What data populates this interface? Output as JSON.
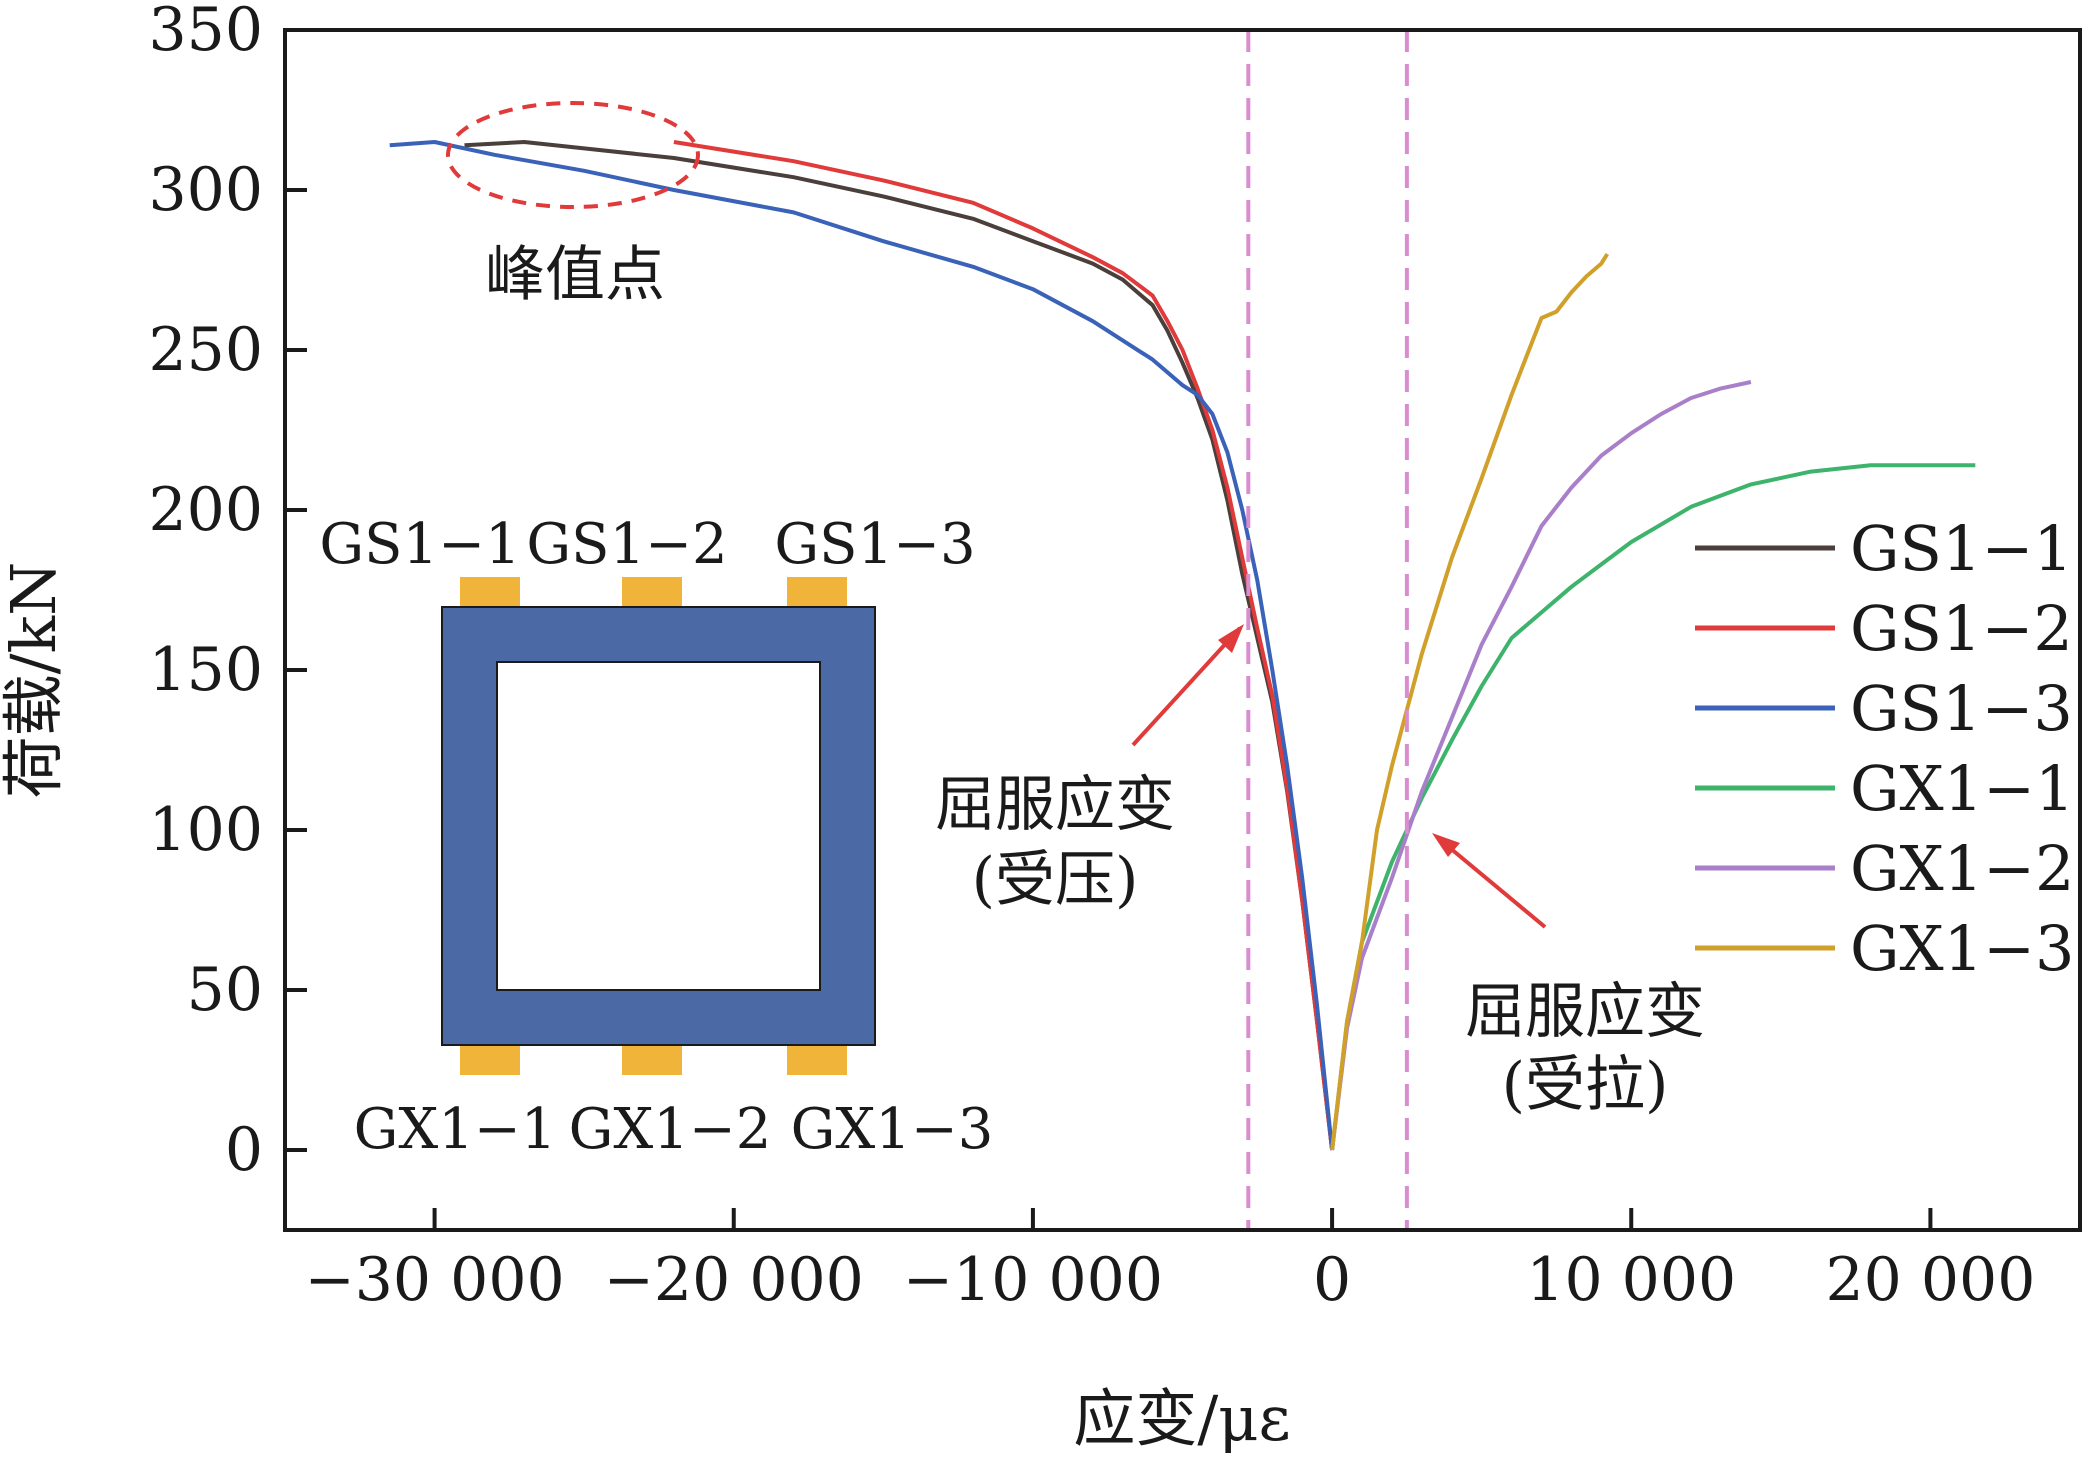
{
  "chart_data": {
    "type": "line",
    "title": "",
    "xlabel": "应变/με",
    "ylabel": "荷载/kN",
    "xlim": [
      -35000,
      25000
    ],
    "ylim": [
      -25,
      350
    ],
    "xticks": [
      -30000,
      -20000,
      -10000,
      0,
      10000,
      20000
    ],
    "xtick_labels": [
      "−30 000",
      "−20 000",
      "−10 000",
      "0",
      "10 000",
      "20 000"
    ],
    "yticks": [
      0,
      50,
      100,
      150,
      200,
      250,
      300,
      350
    ],
    "ytick_labels": [
      "0",
      "50",
      "100",
      "150",
      "200",
      "250",
      "300",
      "350"
    ],
    "grid": false,
    "legend_position": "right",
    "series": [
      {
        "name": "GS1−1",
        "color": "#4a3f3a",
        "points": [
          [
            0,
            0
          ],
          [
            -500,
            40
          ],
          [
            -1000,
            78
          ],
          [
            -1500,
            112
          ],
          [
            -2000,
            140
          ],
          [
            -2500,
            160
          ],
          [
            -3000,
            180
          ],
          [
            -3500,
            203
          ],
          [
            -4000,
            222
          ],
          [
            -4500,
            235
          ],
          [
            -5000,
            246
          ],
          [
            -5500,
            256
          ],
          [
            -6000,
            264
          ],
          [
            -7000,
            272
          ],
          [
            -8000,
            277
          ],
          [
            -10000,
            284
          ],
          [
            -12000,
            291
          ],
          [
            -15000,
            298
          ],
          [
            -18000,
            304
          ],
          [
            -22000,
            310
          ],
          [
            -25000,
            313
          ],
          [
            -27000,
            315
          ],
          [
            -29000,
            314
          ]
        ]
      },
      {
        "name": "GS1−2",
        "color": "#e03a3a",
        "points": [
          [
            0,
            0
          ],
          [
            -500,
            40
          ],
          [
            -1000,
            78
          ],
          [
            -1500,
            113
          ],
          [
            -2000,
            142
          ],
          [
            -2500,
            163
          ],
          [
            -3000,
            185
          ],
          [
            -3500,
            207
          ],
          [
            -4000,
            225
          ],
          [
            -4500,
            238
          ],
          [
            -5000,
            250
          ],
          [
            -5500,
            259
          ],
          [
            -6000,
            267
          ],
          [
            -7000,
            274
          ],
          [
            -8000,
            279
          ],
          [
            -10000,
            288
          ],
          [
            -12000,
            296
          ],
          [
            -15000,
            303
          ],
          [
            -18000,
            309
          ],
          [
            -22000,
            315
          ]
        ]
      },
      {
        "name": "GS1−3",
        "color": "#3a62b8",
        "points": [
          [
            0,
            0
          ],
          [
            -500,
            45
          ],
          [
            -1000,
            85
          ],
          [
            -1500,
            120
          ],
          [
            -2000,
            150
          ],
          [
            -2500,
            178
          ],
          [
            -3000,
            200
          ],
          [
            -3500,
            218
          ],
          [
            -4000,
            230
          ],
          [
            -4500,
            236
          ],
          [
            -5000,
            239
          ],
          [
            -6000,
            247
          ],
          [
            -7000,
            253
          ],
          [
            -8000,
            259
          ],
          [
            -10000,
            269
          ],
          [
            -12000,
            276
          ],
          [
            -15000,
            284
          ],
          [
            -18000,
            293
          ],
          [
            -22000,
            300
          ],
          [
            -25000,
            306
          ],
          [
            -28000,
            311
          ],
          [
            -30000,
            315
          ],
          [
            -31500,
            314
          ]
        ]
      },
      {
        "name": "GX1−1",
        "color": "#3db36b",
        "points": [
          [
            0,
            0
          ],
          [
            500,
            40
          ],
          [
            1000,
            65
          ],
          [
            2000,
            90
          ],
          [
            3000,
            110
          ],
          [
            4000,
            128
          ],
          [
            5000,
            145
          ],
          [
            6000,
            160
          ],
          [
            7000,
            168
          ],
          [
            8000,
            176
          ],
          [
            9000,
            183
          ],
          [
            10000,
            190
          ],
          [
            12000,
            201
          ],
          [
            14000,
            208
          ],
          [
            16000,
            212
          ],
          [
            18000,
            214
          ],
          [
            20000,
            214
          ],
          [
            21500,
            214
          ]
        ]
      },
      {
        "name": "GX1−2",
        "color": "#a97fc9",
        "points": [
          [
            0,
            0
          ],
          [
            500,
            38
          ],
          [
            1000,
            60
          ],
          [
            2000,
            85
          ],
          [
            3000,
            112
          ],
          [
            4000,
            135
          ],
          [
            5000,
            158
          ],
          [
            6000,
            176
          ],
          [
            7000,
            195
          ],
          [
            8000,
            207
          ],
          [
            9000,
            217
          ],
          [
            10000,
            224
          ],
          [
            11000,
            230
          ],
          [
            12000,
            235
          ],
          [
            13000,
            238
          ],
          [
            14000,
            240
          ]
        ]
      },
      {
        "name": "GX1−3",
        "color": "#d1a02a",
        "points": [
          [
            0,
            0
          ],
          [
            500,
            40
          ],
          [
            1000,
            65
          ],
          [
            1500,
            100
          ],
          [
            2000,
            120
          ],
          [
            3000,
            155
          ],
          [
            4000,
            185
          ],
          [
            5000,
            210
          ],
          [
            6000,
            236
          ],
          [
            6500,
            248
          ],
          [
            7000,
            260
          ],
          [
            7500,
            262
          ],
          [
            8000,
            268
          ],
          [
            8500,
            273
          ],
          [
            9000,
            277
          ],
          [
            9200,
            280
          ]
        ]
      }
    ],
    "annotations": {
      "peak": "峰值点",
      "yield_compression_1": "屈服应变",
      "yield_compression_2": "(受压)",
      "yield_tension_1": "屈服应变",
      "yield_tension_2": "(受拉)"
    },
    "reference_lines_x": [
      -2800,
      2500
    ],
    "inset": {
      "top_labels": [
        "GS1−1",
        "GS1−2",
        "GS1−3"
      ],
      "bottom_labels": [
        "GX1−1",
        "GX1−2",
        "GX1−3"
      ],
      "tube_color": "#4a69a5",
      "gauge_color": "#f0b43a"
    }
  }
}
